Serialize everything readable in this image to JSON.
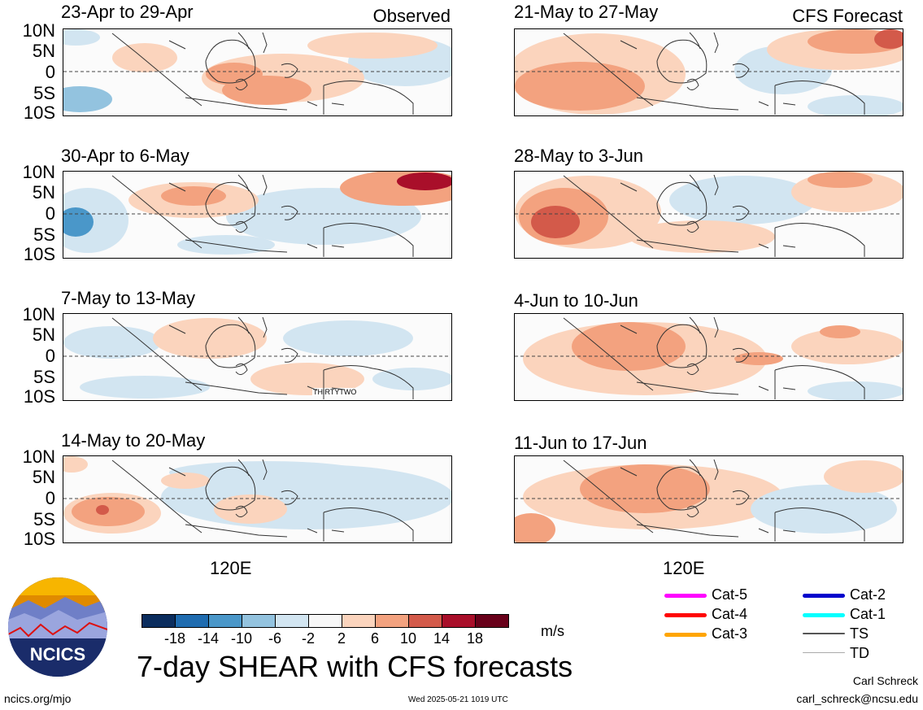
{
  "headers": {
    "observed": "Observed",
    "forecast": "CFS Forecast"
  },
  "y_ticks": [
    "10N",
    "5N",
    "0",
    "5S",
    "10S"
  ],
  "x_tick": "120E",
  "panels_left": [
    {
      "title": "23-Apr to 29-Apr"
    },
    {
      "title": "30-Apr to 6-May"
    },
    {
      "title": "7-May to 13-May",
      "annotation": "THIRTYTWO"
    },
    {
      "title": "14-May to 20-May"
    }
  ],
  "panels_right": [
    {
      "title": "21-May to 27-May"
    },
    {
      "title": "28-May to 3-Jun"
    },
    {
      "title": "4-Jun to 10-Jun"
    },
    {
      "title": "11-Jun to 17-Jun"
    }
  ],
  "colorbar": {
    "ticks": [
      "-18",
      "-14",
      "-10",
      "-6",
      "-2",
      "2",
      "6",
      "10",
      "14",
      "18"
    ],
    "colors": [
      "#0b2d5e",
      "#1f6cb0",
      "#4a97c9",
      "#93c3df",
      "#d2e5f1",
      "#f7f7f7",
      "#fbd4bd",
      "#f3a27f",
      "#d35a4a",
      "#a90f2a",
      "#68001a"
    ],
    "units": "m/s"
  },
  "legend": [
    {
      "label": "Cat-5",
      "color": "#ff00ff"
    },
    {
      "label": "Cat-4",
      "color": "#ff0000"
    },
    {
      "label": "Cat-3",
      "color": "#ffa500"
    },
    {
      "label": "Cat-2",
      "color": "#0000cc"
    },
    {
      "label": "Cat-1",
      "color": "#00ffff"
    },
    {
      "label": "TS",
      "color": "#555555"
    },
    {
      "label": "TD",
      "color": "#aaaaaa"
    }
  ],
  "logo_text": "NCICS",
  "main_title": "7-day SHEAR with CFS forecasts",
  "footer": {
    "url": "ncics.org/mjo",
    "timestamp": "Wed 2025-05-21 1019 UTC",
    "author": "Carl Schreck",
    "email": "carl_schreck@ncsu.edu"
  }
}
